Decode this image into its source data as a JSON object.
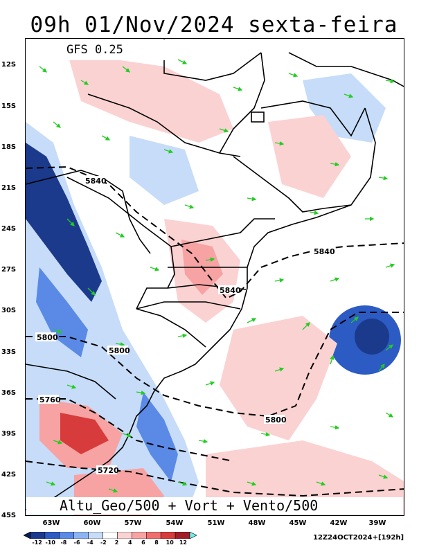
{
  "title": "09h 01/Nov/2024 sexta-feira",
  "model": "GFS 0.25",
  "product": "Altu_Geo/500 + Vort + Vento/500",
  "run_info": "12Z24OCT2024+[192h]",
  "lat_labels": [
    "12S",
    "15S",
    "18S",
    "21S",
    "24S",
    "27S",
    "30S",
    "33S",
    "36S",
    "39S",
    "42S",
    "45S"
  ],
  "lon_labels": [
    "63W",
    "60W",
    "57W",
    "54W",
    "51W",
    "48W",
    "45W",
    "42W",
    "39W"
  ],
  "contour_labels": [
    "5840",
    "5840",
    "5840",
    "5800",
    "5800",
    "5800",
    "5760",
    "5720"
  ],
  "colorbar": {
    "labels": [
      "-12",
      "-10",
      "-8",
      "-6",
      "-4",
      "-2",
      "2",
      "4",
      "6",
      "8",
      "10",
      "12"
    ],
    "colors": [
      "#0a1d4f",
      "#1b3a8c",
      "#2d5bc4",
      "#5a8ae6",
      "#8db4f0",
      "#c6dcf8",
      "#ffffff",
      "#fbd2d2",
      "#f7a3a3",
      "#ef6e6e",
      "#d83b3b",
      "#a01e2a",
      "#6ff0e8"
    ]
  },
  "colors": {
    "wind_arrow": "#22cc22",
    "border": "#000000",
    "vort_neg_strong": "#1b3a8c",
    "vort_neg": "#5a8ae6",
    "vort_pos": "#f7a3a3",
    "vort_pos_strong": "#d83b3b"
  }
}
